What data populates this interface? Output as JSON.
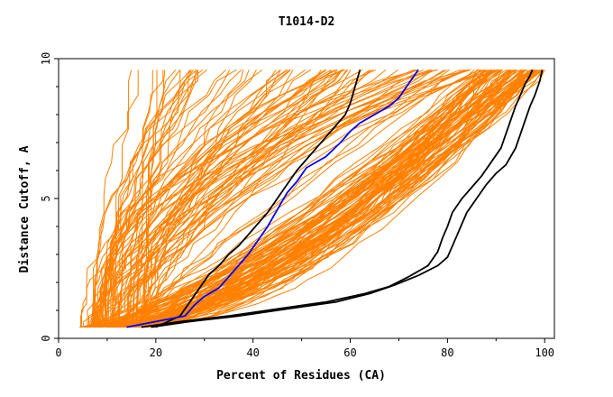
{
  "chart_data": {
    "type": "line",
    "title": "T1014-D2",
    "xlabel": "Percent of Residues (CA)",
    "ylabel": "Distance Cutoff, A",
    "xlim": [
      0,
      102
    ],
    "ylim": [
      0,
      10
    ],
    "xticks": [
      {
        "value": 0,
        "label": "0"
      },
      {
        "value": 20,
        "label": "20"
      },
      {
        "value": 40,
        "label": "40"
      },
      {
        "value": 60,
        "label": "60"
      },
      {
        "value": 80,
        "label": "80"
      },
      {
        "value": 100,
        "label": "100"
      }
    ],
    "yticks": [
      {
        "value": 0,
        "label": "0"
      },
      {
        "value": 5,
        "label": "5"
      },
      {
        "value": 10,
        "label": "10"
      }
    ],
    "background_series_color": "#ff8000",
    "background_series_count": 180,
    "highlight_series": [
      {
        "color": "#000000",
        "x": [
          17,
          25,
          35,
          45,
          55,
          63,
          68,
          72,
          76,
          78,
          79,
          80,
          81,
          83,
          85,
          87,
          89,
          91,
          92,
          93,
          94,
          95,
          96,
          97,
          97.5
        ],
        "y": [
          0.4,
          0.6,
          0.8,
          1.05,
          1.3,
          1.6,
          1.85,
          2.2,
          2.6,
          3.1,
          3.6,
          4.0,
          4.5,
          5.0,
          5.4,
          5.8,
          6.3,
          6.8,
          7.3,
          7.8,
          8.3,
          8.7,
          9.1,
          9.4,
          9.6
        ]
      },
      {
        "color": "#000000",
        "x": [
          19,
          27,
          37,
          47,
          57,
          64,
          69,
          74,
          78,
          80,
          81,
          82,
          83,
          84,
          86,
          88,
          90,
          92,
          94,
          95,
          96,
          97,
          98,
          99,
          99.5
        ],
        "y": [
          0.4,
          0.6,
          0.8,
          1.05,
          1.3,
          1.6,
          1.9,
          2.25,
          2.6,
          2.9,
          3.3,
          3.7,
          4.1,
          4.5,
          5.0,
          5.5,
          5.9,
          6.2,
          6.8,
          7.3,
          7.8,
          8.3,
          8.7,
          9.2,
          9.6
        ]
      },
      {
        "color": "#000000",
        "x": [
          20,
          25,
          27,
          29,
          31,
          33,
          35,
          37,
          39,
          41,
          43,
          45,
          47,
          49,
          51,
          53,
          55,
          57,
          59,
          60,
          61,
          62
        ],
        "y": [
          0.4,
          0.8,
          1.3,
          1.8,
          2.3,
          2.6,
          3.0,
          3.3,
          3.7,
          4.1,
          4.5,
          5.0,
          5.5,
          6.0,
          6.4,
          6.8,
          7.2,
          7.6,
          8.0,
          8.4,
          9.0,
          9.6
        ]
      },
      {
        "color": "#0000ff",
        "x": [
          14,
          20,
          26,
          28,
          30,
          33,
          35,
          37,
          39,
          41,
          43,
          45,
          47,
          49,
          51,
          55,
          58,
          60,
          62,
          65,
          68,
          70,
          72,
          74
        ],
        "y": [
          0.4,
          0.6,
          0.8,
          1.2,
          1.5,
          1.8,
          2.2,
          2.6,
          3.0,
          3.5,
          4.0,
          4.6,
          5.2,
          5.6,
          6.1,
          6.5,
          7.0,
          7.4,
          7.7,
          8.0,
          8.3,
          8.6,
          9.1,
          9.6
        ]
      }
    ]
  }
}
